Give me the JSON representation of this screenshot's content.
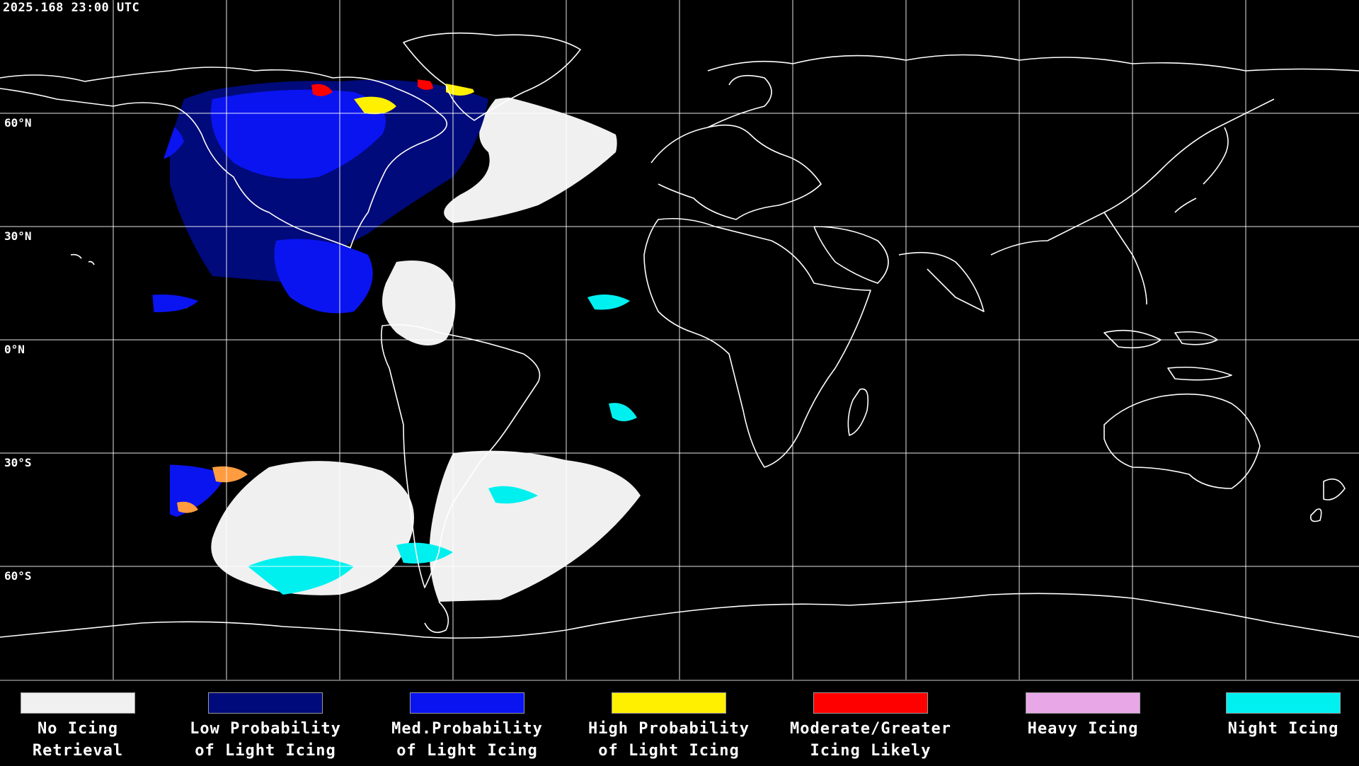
{
  "timestamp": "2025.168 23:00 UTC",
  "latitude_labels": [
    "60°N",
    "30°N",
    "0°N",
    "30°S",
    "60°S"
  ],
  "legend": [
    {
      "label": "No Icing\nRetrieval",
      "color": "#f0f0f0"
    },
    {
      "label": "Low Probability\nof Light Icing",
      "color": "#000a7a"
    },
    {
      "label": "Med.Probability\nof Light Icing",
      "color": "#0a14f0"
    },
    {
      "label": "High Probability\nof Light Icing",
      "color": "#fff000"
    },
    {
      "label": "Moderate/Greater\nIcing Likely",
      "color": "#ff0000"
    },
    {
      "label": "Heavy Icing",
      "color": "#e8a8e8"
    },
    {
      "label": "Night Icing",
      "color": "#00f0f0"
    }
  ],
  "map": {
    "background": "#000000",
    "grid_color": "#ffffff",
    "coastline_color": "#ffffff"
  }
}
